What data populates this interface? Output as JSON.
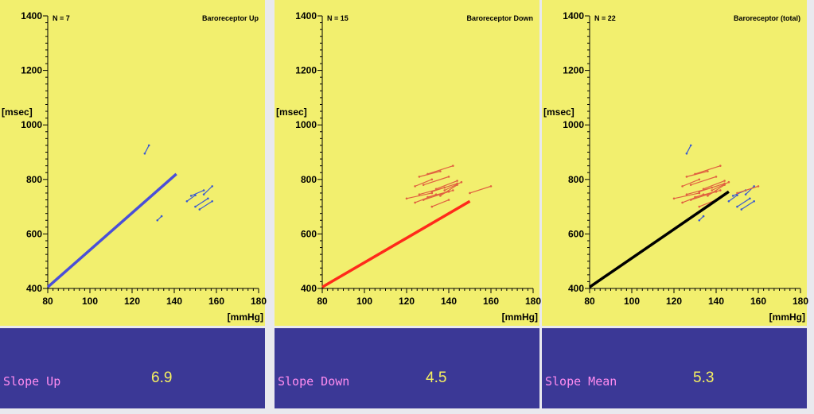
{
  "chart_data": [
    {
      "type": "scatter",
      "title": "Baroreceptor Up",
      "n_label": "N = 7",
      "ylabel": "[msec]",
      "xlabel": "[mmHg]",
      "xlim": [
        80,
        180
      ],
      "ylim": [
        400,
        1400
      ],
      "xticks": [
        80,
        100,
        120,
        140,
        160,
        180
      ],
      "yticks": [
        400,
        600,
        800,
        1000,
        1200,
        1400
      ],
      "grid": false,
      "regression": {
        "color": "#4a4fd8",
        "x": [
          80,
          141
        ],
        "y": [
          405,
          820
        ]
      },
      "sequences": [
        {
          "color": "#3a5ad0",
          "x": [
            126,
            128
          ],
          "y": [
            895,
            925
          ]
        },
        {
          "color": "#3a5ad0",
          "x": [
            146,
            150
          ],
          "y": [
            720,
            742
          ]
        },
        {
          "color": "#3a5ad0",
          "x": [
            148,
            154
          ],
          "y": [
            740,
            760
          ]
        },
        {
          "color": "#3a5ad0",
          "x": [
            150,
            156
          ],
          "y": [
            700,
            730
          ]
        },
        {
          "color": "#3a5ad0",
          "x": [
            152,
            158
          ],
          "y": [
            690,
            720
          ]
        },
        {
          "color": "#3a5ad0",
          "x": [
            154,
            158
          ],
          "y": [
            745,
            775
          ]
        },
        {
          "color": "#3a5ad0",
          "x": [
            132,
            134
          ],
          "y": [
            650,
            665
          ]
        }
      ],
      "slope_label": "Slope Up",
      "slope_value": "6.9"
    },
    {
      "type": "scatter",
      "title": "Baroreceptor Down",
      "n_label": "N = 15",
      "ylabel": "[msec]",
      "xlabel": "[mmHg]",
      "xlim": [
        80,
        180
      ],
      "ylim": [
        400,
        1400
      ],
      "xticks": [
        80,
        100,
        120,
        140,
        160,
        180
      ],
      "yticks": [
        400,
        600,
        800,
        1000,
        1200,
        1400
      ],
      "grid": false,
      "regression": {
        "color": "#ff2a1a",
        "x": [
          80,
          150
        ],
        "y": [
          405,
          720
        ]
      },
      "sequences": [
        {
          "color": "#e06040",
          "x": [
            126,
            136
          ],
          "y": [
            810,
            830
          ]
        },
        {
          "color": "#e06040",
          "x": [
            130,
            142
          ],
          "y": [
            820,
            850
          ]
        },
        {
          "color": "#e06040",
          "x": [
            124,
            132
          ],
          "y": [
            775,
            800
          ]
        },
        {
          "color": "#e06040",
          "x": [
            128,
            140
          ],
          "y": [
            780,
            810
          ]
        },
        {
          "color": "#e06040",
          "x": [
            132,
            144
          ],
          "y": [
            755,
            785
          ]
        },
        {
          "color": "#e06040",
          "x": [
            126,
            138
          ],
          "y": [
            745,
            770
          ]
        },
        {
          "color": "#e06040",
          "x": [
            134,
            144
          ],
          "y": [
            765,
            795
          ]
        },
        {
          "color": "#e06040",
          "x": [
            120,
            132
          ],
          "y": [
            730,
            750
          ]
        },
        {
          "color": "#e06040",
          "x": [
            128,
            140
          ],
          "y": [
            725,
            755
          ]
        },
        {
          "color": "#e06040",
          "x": [
            136,
            144
          ],
          "y": [
            740,
            780
          ]
        },
        {
          "color": "#e06040",
          "x": [
            130,
            142
          ],
          "y": [
            735,
            760
          ]
        },
        {
          "color": "#e06040",
          "x": [
            124,
            134
          ],
          "y": [
            715,
            745
          ]
        },
        {
          "color": "#e06040",
          "x": [
            132,
            140
          ],
          "y": [
            700,
            725
          ]
        },
        {
          "color": "#e06040",
          "x": [
            150,
            160
          ],
          "y": [
            750,
            775
          ]
        },
        {
          "color": "#e06040",
          "x": [
            138,
            146
          ],
          "y": [
            760,
            790
          ]
        }
      ],
      "slope_label": "Slope Down",
      "slope_value": "4.5"
    },
    {
      "type": "scatter",
      "title": "Baroreceptor (total)",
      "n_label": "N = 22",
      "ylabel": "[msec]",
      "xlabel": "[mmHg]",
      "xlim": [
        80,
        180
      ],
      "ylim": [
        400,
        1400
      ],
      "xticks": [
        80,
        100,
        120,
        140,
        160,
        180
      ],
      "yticks": [
        400,
        600,
        800,
        1000,
        1200,
        1400
      ],
      "grid": false,
      "regression": {
        "color": "#000000",
        "x": [
          80,
          146
        ],
        "y": [
          405,
          755
        ]
      },
      "sequences": [
        {
          "color": "#3a5ad0",
          "x": [
            126,
            128
          ],
          "y": [
            895,
            925
          ]
        },
        {
          "color": "#3a5ad0",
          "x": [
            146,
            150
          ],
          "y": [
            720,
            742
          ]
        },
        {
          "color": "#3a5ad0",
          "x": [
            148,
            154
          ],
          "y": [
            740,
            760
          ]
        },
        {
          "color": "#3a5ad0",
          "x": [
            150,
            156
          ],
          "y": [
            700,
            730
          ]
        },
        {
          "color": "#3a5ad0",
          "x": [
            152,
            158
          ],
          "y": [
            690,
            720
          ]
        },
        {
          "color": "#3a5ad0",
          "x": [
            154,
            158
          ],
          "y": [
            745,
            775
          ]
        },
        {
          "color": "#3a5ad0",
          "x": [
            132,
            134
          ],
          "y": [
            650,
            665
          ]
        },
        {
          "color": "#e06040",
          "x": [
            126,
            136
          ],
          "y": [
            810,
            830
          ]
        },
        {
          "color": "#e06040",
          "x": [
            130,
            142
          ],
          "y": [
            820,
            850
          ]
        },
        {
          "color": "#e06040",
          "x": [
            124,
            132
          ],
          "y": [
            775,
            800
          ]
        },
        {
          "color": "#e06040",
          "x": [
            128,
            140
          ],
          "y": [
            780,
            810
          ]
        },
        {
          "color": "#e06040",
          "x": [
            132,
            144
          ],
          "y": [
            755,
            785
          ]
        },
        {
          "color": "#e06040",
          "x": [
            126,
            138
          ],
          "y": [
            745,
            770
          ]
        },
        {
          "color": "#e06040",
          "x": [
            134,
            144
          ],
          "y": [
            765,
            795
          ]
        },
        {
          "color": "#e06040",
          "x": [
            120,
            132
          ],
          "y": [
            730,
            750
          ]
        },
        {
          "color": "#e06040",
          "x": [
            128,
            140
          ],
          "y": [
            725,
            755
          ]
        },
        {
          "color": "#e06040",
          "x": [
            136,
            144
          ],
          "y": [
            740,
            780
          ]
        },
        {
          "color": "#e06040",
          "x": [
            130,
            142
          ],
          "y": [
            735,
            760
          ]
        },
        {
          "color": "#e06040",
          "x": [
            124,
            134
          ],
          "y": [
            715,
            745
          ]
        },
        {
          "color": "#e06040",
          "x": [
            132,
            140
          ],
          "y": [
            700,
            725
          ]
        },
        {
          "color": "#e06040",
          "x": [
            150,
            160
          ],
          "y": [
            750,
            775
          ]
        },
        {
          "color": "#e06040",
          "x": [
            138,
            146
          ],
          "y": [
            760,
            790
          ]
        }
      ],
      "slope_label": "Slope Mean",
      "slope_value": "5.3"
    }
  ]
}
